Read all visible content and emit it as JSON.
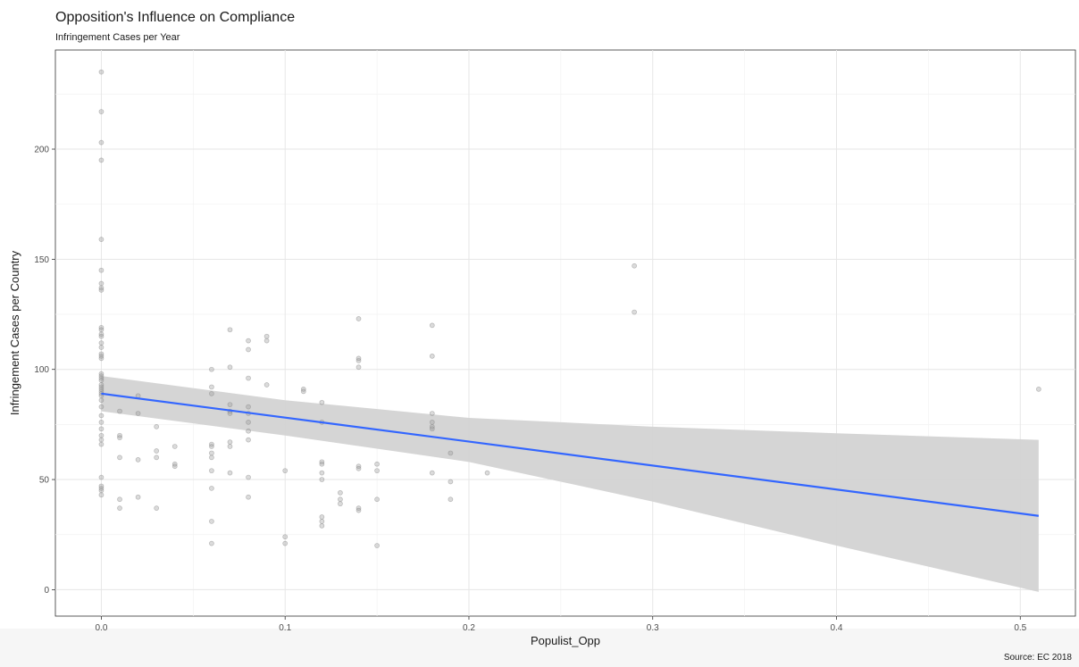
{
  "chart_data": {
    "type": "scatter",
    "title": "Opposition's Influence on Compliance",
    "subtitle": "Infringement Cases per Year",
    "xlabel": "Populist_Opp",
    "ylabel": "Infringement Cases per Country",
    "caption": "Source: EC 2018",
    "xlim": [
      -0.025,
      0.53
    ],
    "ylim": [
      -12,
      245
    ],
    "x_ticks": [
      0.0,
      0.1,
      0.2,
      0.3,
      0.4,
      0.5
    ],
    "x_tick_labels": [
      "0.0",
      "0.1",
      "0.2",
      "0.3",
      "0.4",
      "0.5"
    ],
    "y_ticks": [
      0,
      50,
      100,
      150,
      200
    ],
    "y_tick_labels": [
      "0",
      "50",
      "100",
      "150",
      "200"
    ],
    "grid": true,
    "point_color": "#999999",
    "line_color": "#3366ff",
    "band_color": "#d3d3d3",
    "points": [
      [
        0,
        235
      ],
      [
        0,
        217
      ],
      [
        0,
        203
      ],
      [
        0,
        195
      ],
      [
        0,
        159
      ],
      [
        0,
        145
      ],
      [
        0,
        139
      ],
      [
        0,
        137
      ],
      [
        0,
        136
      ],
      [
        0,
        119
      ],
      [
        0,
        118
      ],
      [
        0,
        116
      ],
      [
        0,
        115
      ],
      [
        0,
        112
      ],
      [
        0,
        110
      ],
      [
        0,
        107
      ],
      [
        0,
        106
      ],
      [
        0,
        105
      ],
      [
        0,
        98
      ],
      [
        0,
        97
      ],
      [
        0,
        96
      ],
      [
        0,
        95
      ],
      [
        0,
        93
      ],
      [
        0,
        92
      ],
      [
        0,
        91
      ],
      [
        0,
        90
      ],
      [
        0,
        89
      ],
      [
        0,
        88
      ],
      [
        0,
        86
      ],
      [
        0,
        83
      ],
      [
        0,
        79
      ],
      [
        0,
        76
      ],
      [
        0,
        73
      ],
      [
        0,
        70
      ],
      [
        0,
        68
      ],
      [
        0,
        66
      ],
      [
        0,
        51
      ],
      [
        0,
        47
      ],
      [
        0,
        46
      ],
      [
        0,
        45
      ],
      [
        0,
        43
      ],
      [
        0.01,
        81
      ],
      [
        0.01,
        70
      ],
      [
        0.01,
        69
      ],
      [
        0.01,
        60
      ],
      [
        0.01,
        41
      ],
      [
        0.01,
        37
      ],
      [
        0.02,
        88
      ],
      [
        0.02,
        80
      ],
      [
        0.02,
        59
      ],
      [
        0.02,
        42
      ],
      [
        0.03,
        74
      ],
      [
        0.03,
        63
      ],
      [
        0.03,
        60
      ],
      [
        0.03,
        37
      ],
      [
        0.04,
        65
      ],
      [
        0.04,
        57
      ],
      [
        0.04,
        56
      ],
      [
        0.06,
        100
      ],
      [
        0.06,
        92
      ],
      [
        0.06,
        89
      ],
      [
        0.06,
        66
      ],
      [
        0.06,
        65
      ],
      [
        0.06,
        62
      ],
      [
        0.06,
        60
      ],
      [
        0.06,
        54
      ],
      [
        0.06,
        46
      ],
      [
        0.06,
        31
      ],
      [
        0.06,
        21
      ],
      [
        0.07,
        118
      ],
      [
        0.07,
        101
      ],
      [
        0.07,
        84
      ],
      [
        0.07,
        81
      ],
      [
        0.07,
        80
      ],
      [
        0.07,
        67
      ],
      [
        0.07,
        65
      ],
      [
        0.07,
        53
      ],
      [
        0.08,
        113
      ],
      [
        0.08,
        109
      ],
      [
        0.08,
        96
      ],
      [
        0.08,
        83
      ],
      [
        0.08,
        80
      ],
      [
        0.08,
        76
      ],
      [
        0.08,
        72
      ],
      [
        0.08,
        68
      ],
      [
        0.08,
        51
      ],
      [
        0.08,
        42
      ],
      [
        0.09,
        115
      ],
      [
        0.09,
        113
      ],
      [
        0.09,
        93
      ],
      [
        0.1,
        54
      ],
      [
        0.1,
        24
      ],
      [
        0.1,
        21
      ],
      [
        0.11,
        91
      ],
      [
        0.11,
        90
      ],
      [
        0.12,
        85
      ],
      [
        0.12,
        76
      ],
      [
        0.12,
        58
      ],
      [
        0.12,
        57
      ],
      [
        0.12,
        53
      ],
      [
        0.12,
        50
      ],
      [
        0.12,
        33
      ],
      [
        0.12,
        31
      ],
      [
        0.12,
        29
      ],
      [
        0.13,
        44
      ],
      [
        0.13,
        41
      ],
      [
        0.13,
        39
      ],
      [
        0.14,
        123
      ],
      [
        0.14,
        105
      ],
      [
        0.14,
        104
      ],
      [
        0.14,
        101
      ],
      [
        0.14,
        56
      ],
      [
        0.14,
        55
      ],
      [
        0.14,
        37
      ],
      [
        0.14,
        36
      ],
      [
        0.15,
        57
      ],
      [
        0.15,
        54
      ],
      [
        0.15,
        41
      ],
      [
        0.15,
        20
      ],
      [
        0.18,
        120
      ],
      [
        0.18,
        106
      ],
      [
        0.18,
        80
      ],
      [
        0.18,
        76
      ],
      [
        0.18,
        74
      ],
      [
        0.18,
        73
      ],
      [
        0.18,
        53
      ],
      [
        0.19,
        62
      ],
      [
        0.19,
        49
      ],
      [
        0.19,
        41
      ],
      [
        0.21,
        53
      ],
      [
        0.29,
        147
      ],
      [
        0.29,
        126
      ],
      [
        0.51,
        91
      ]
    ],
    "fit_line": {
      "x": [
        0,
        0.51
      ],
      "y": [
        89,
        33.5
      ]
    },
    "confidence_band": {
      "x": [
        0,
        0.1,
        0.2,
        0.3,
        0.4,
        0.51
      ],
      "upper": [
        97,
        86,
        78,
        74,
        71,
        68
      ],
      "lower": [
        81,
        70,
        58,
        40,
        20,
        -1
      ]
    }
  }
}
